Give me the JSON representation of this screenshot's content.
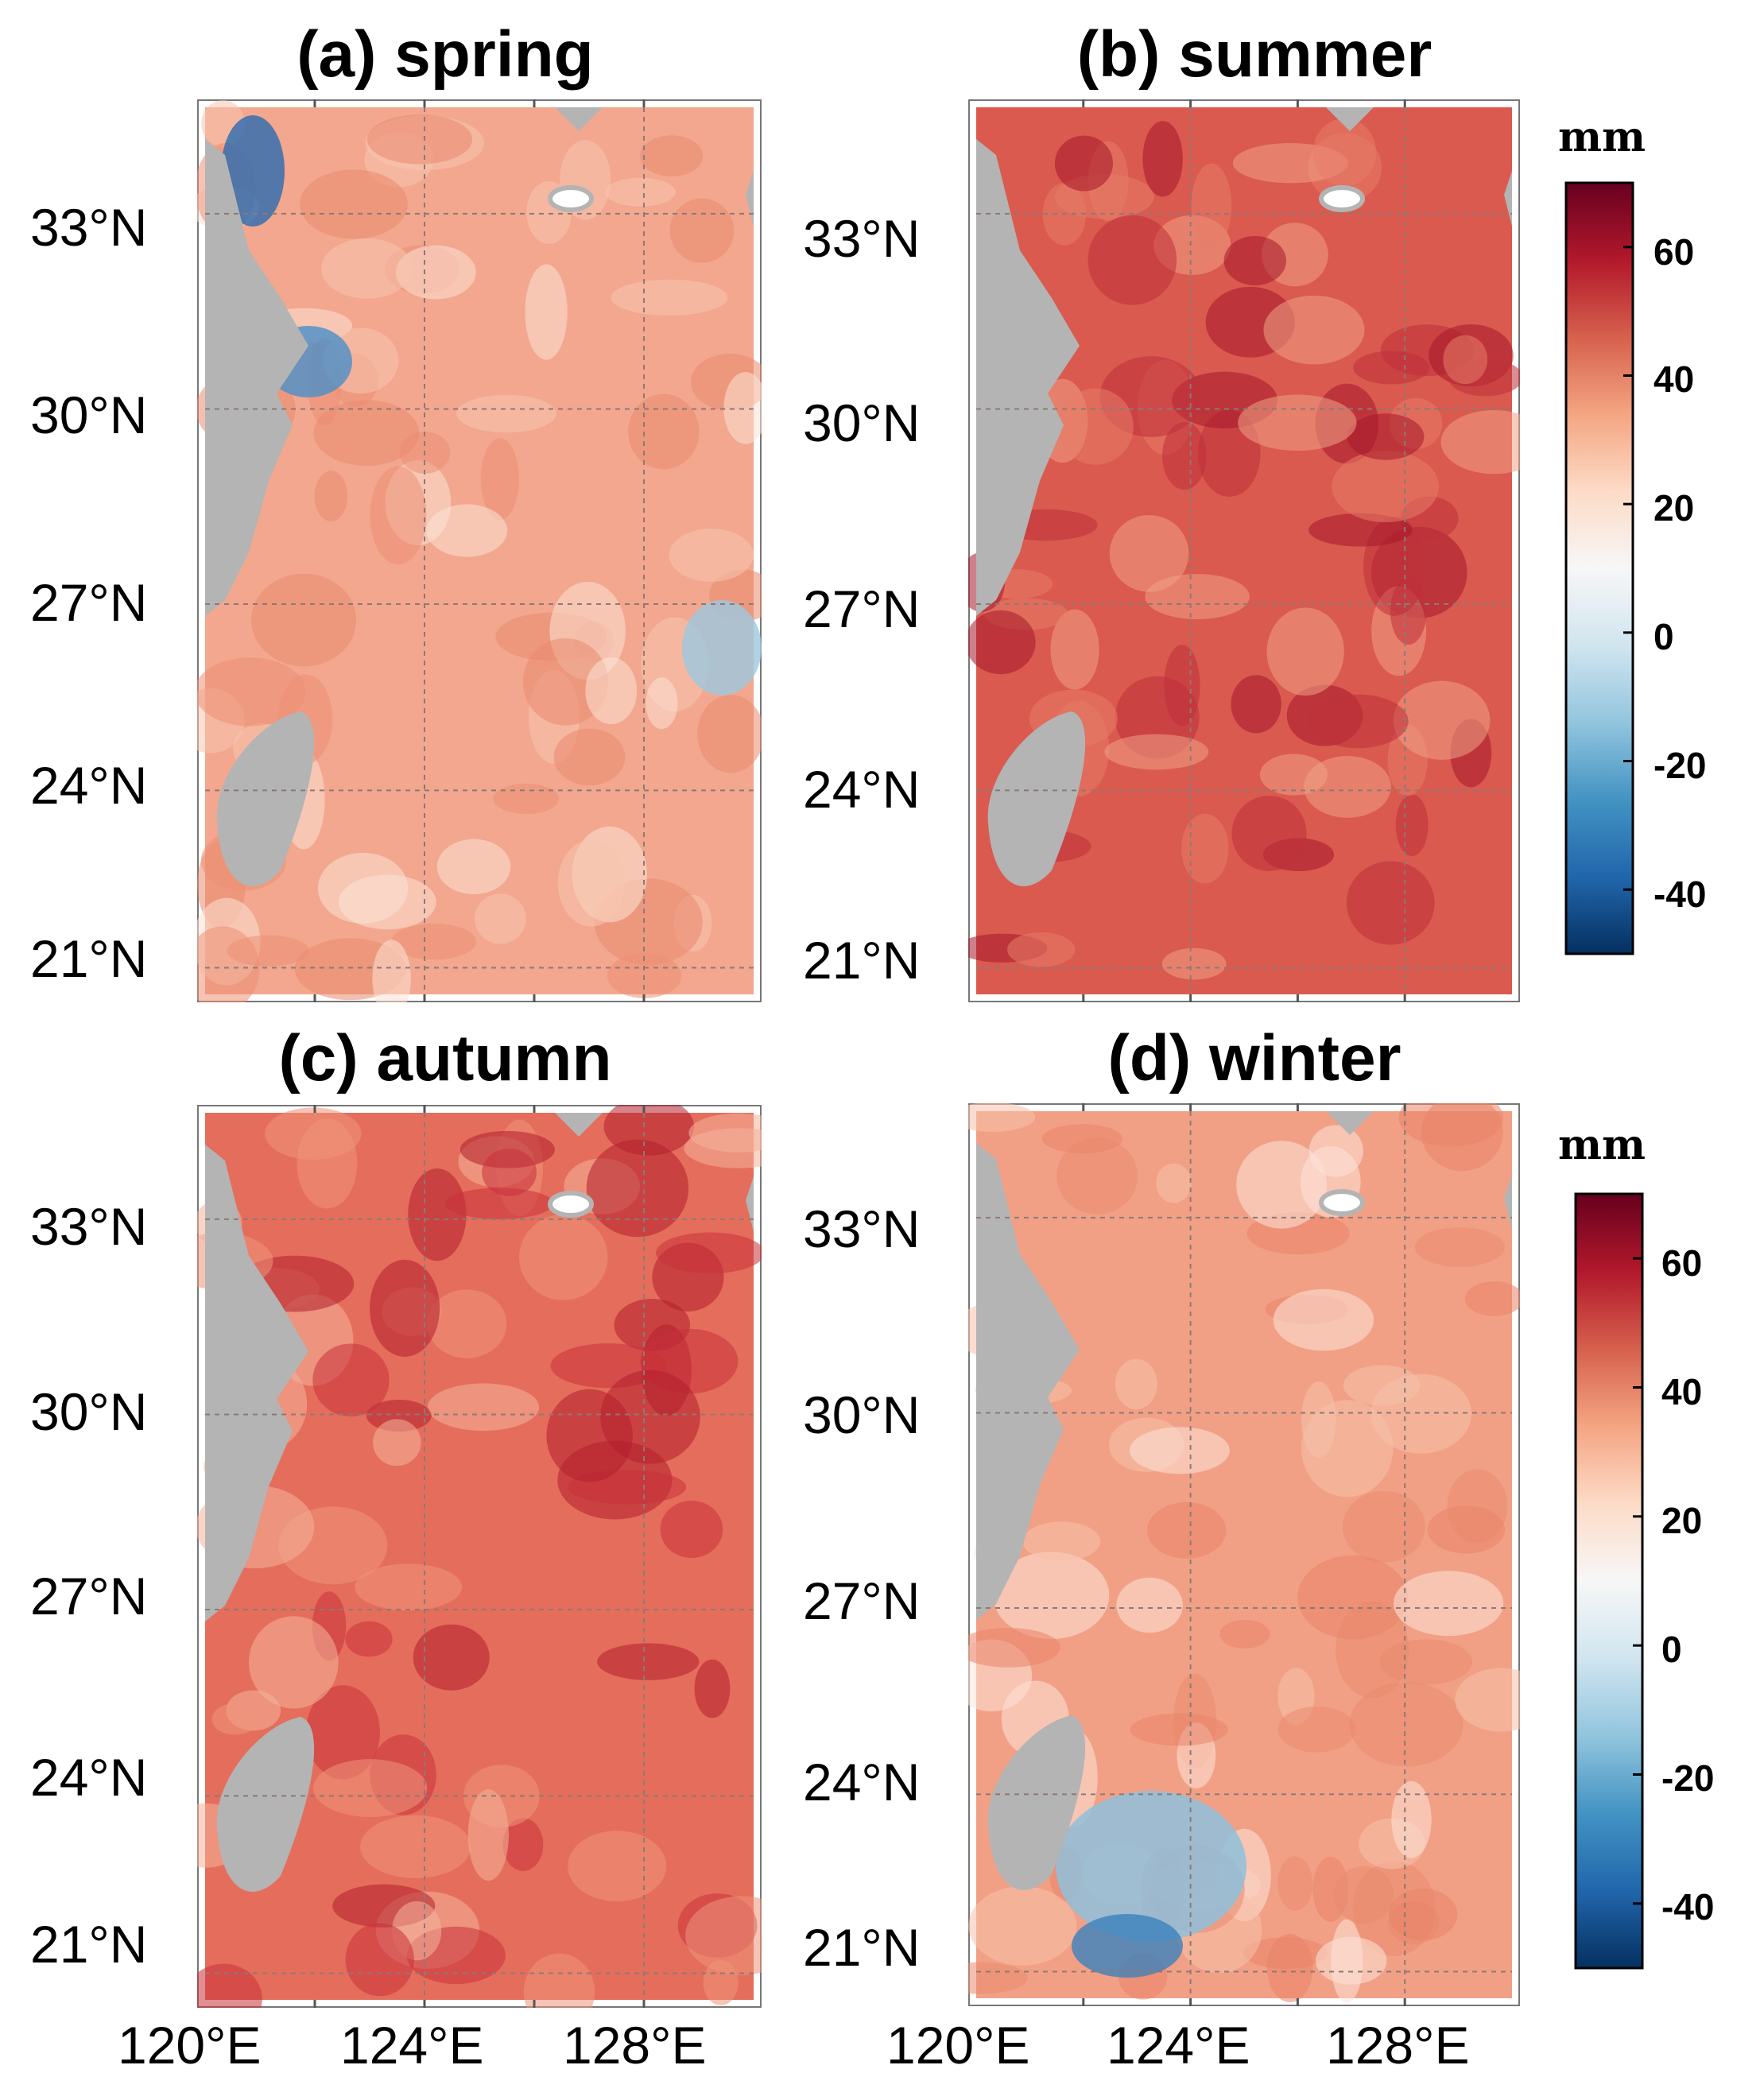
{
  "figure": {
    "panels": [
      {
        "id": "spring",
        "title": "(a) spring",
        "background": "#f2a78e"
      },
      {
        "id": "summer",
        "title": "(b) summer",
        "background": "#da5a4f"
      },
      {
        "id": "autumn",
        "title": "(c) autumn",
        "background": "#e56d5c"
      },
      {
        "id": "winter",
        "title": "(d) winter",
        "background": "#f1a086"
      }
    ],
    "lat_ticks": [
      "33°N",
      "30°N",
      "27°N",
      "24°N",
      "21°N"
    ],
    "lon_ticks": [
      "120°E",
      "124°E",
      "128°E"
    ],
    "colorbar": {
      "unit": "mm",
      "ticks": [
        "60",
        "40",
        "20",
        "0",
        "-20",
        "-40"
      ],
      "range": [
        -50,
        70
      ],
      "colors": [
        "#67001f",
        "#b2182b",
        "#d6604d",
        "#f4a582",
        "#fddbc7",
        "#f7f7f7",
        "#d1e5f0",
        "#92c5de",
        "#4393c3",
        "#2166ac",
        "#053061"
      ]
    },
    "map": {
      "lon_range": [
        120,
        130
      ],
      "lat_range": [
        20,
        35
      ],
      "land_color": "#b4b4b4",
      "grid": true
    }
  }
}
